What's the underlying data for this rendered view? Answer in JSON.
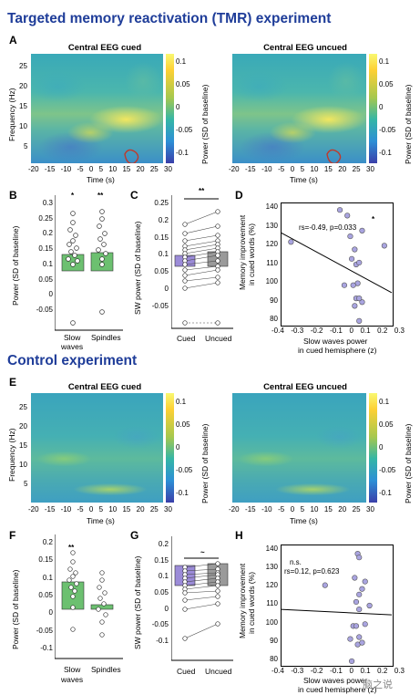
{
  "sections": {
    "tmr_title": "Targeted memory reactivation (TMR)  experiment",
    "control_title": "Control experiment"
  },
  "panels": {
    "A": "A",
    "B": "B",
    "C": "C",
    "D": "D",
    "E": "E",
    "F": "F",
    "G": "G",
    "H": "H"
  },
  "spectrogram": {
    "cued_title": "Central EEG cued",
    "uncued_title": "Central EEG uncued",
    "ylabel": "Frequency (Hz)",
    "xlabel": "Time (s)",
    "yticks": [
      "25",
      "20",
      "15",
      "10",
      "5"
    ],
    "xticks": [
      "-20",
      "-15",
      "-10",
      "-5",
      "0",
      "5",
      "10",
      "15",
      "20",
      "25",
      "30"
    ],
    "cbar_label": "Power (SD of baseline)",
    "cbar_ticks_cued_A": [
      "0.1",
      "0.05",
      "0",
      "-0.05",
      "-0.1"
    ],
    "cbar_ticks_uncued_A": [
      "0.1",
      "0.05",
      "0",
      "-0.05",
      "-0.1"
    ],
    "cbar_ticks_cued_E": [
      "0.1",
      "0.05",
      "0",
      "-0.05",
      "-0.1"
    ],
    "cbar_ticks_uncued_E": [
      "0.1",
      "0.05",
      "0",
      "-0.05",
      "-0.1"
    ]
  },
  "panelB": {
    "ylabel": "Power (SD of baseline)",
    "yticks": [
      "0.3",
      "0.25",
      "0.2",
      "0.15",
      "0.1",
      "0.05",
      "0",
      "-0.05"
    ],
    "categories": [
      "Slow\nwaves",
      "Spindles"
    ],
    "cat1": "Slow",
    "cat1b": "waves",
    "cat2": "Spindles",
    "sig": [
      "*",
      "**"
    ]
  },
  "panelC": {
    "ylabel": "SW power (SD of baseline)",
    "yticks": [
      "0.25",
      "0.2",
      "0.15",
      "0.1",
      "0.05",
      "0",
      "-0.05"
    ],
    "categories": [
      "Cued",
      "Uncued"
    ],
    "sig": "**"
  },
  "panelD": {
    "ylabel1": "Memory improvement",
    "ylabel2": "in cued words (%)",
    "xlabel1": "Slow waves power",
    "xlabel2": "in cued hemisphere (z)",
    "stat": "rs=-0.49, p=0.033",
    "sig": "*",
    "yticks": [
      "140",
      "130",
      "120",
      "110",
      "100",
      "90",
      "80"
    ],
    "xticks": [
      "-0.4",
      "-0.3",
      "-0.2",
      "-0.1",
      "0",
      "0.1",
      "0.2",
      "0.3"
    ]
  },
  "panelF": {
    "ylabel": "Power (SD of baseline)",
    "yticks": [
      "0.2",
      "0.15",
      "0.1",
      "0.05",
      "0",
      "-0.05",
      "-0.1"
    ],
    "cat1": "Slow",
    "cat1b": "waves",
    "cat2": "Spindles",
    "sig": "**"
  },
  "panelG": {
    "ylabel": "SW power (SD of baseline)",
    "yticks": [
      "0.2",
      "0.15",
      "0.1",
      "0.05",
      "0",
      "-0.05",
      "-0.1"
    ],
    "categories": [
      "Cued",
      "Uncued"
    ],
    "sig": "~"
  },
  "panelH": {
    "ylabel1": "Memory improvement",
    "ylabel2": "in cued words (%)",
    "xlabel1": "Slow waves power",
    "xlabel2": "in cued hemisphere (z)",
    "stat": "rs=0.12, p=0.623",
    "sig": "n.s.",
    "yticks": [
      "140",
      "130",
      "120",
      "110",
      "100",
      "90",
      "80"
    ],
    "xticks": [
      "-0.4",
      "-0.3",
      "-0.2",
      "-0.1",
      "0",
      "0.1",
      "0.2",
      "0.3"
    ]
  },
  "watermark": "脑之说",
  "colors": {
    "title": "#1f3d99",
    "bar_green": "#6cc070",
    "bar_purple": "#9b8bd8",
    "bar_gray": "#9a9a9a",
    "scatter": "#a9a4e0"
  },
  "chart_data": [
    {
      "panel": "D",
      "type": "scatter",
      "xlabel": "Slow waves power in cued hemisphere (z)",
      "ylabel": "Memory improvement in cued words (%)",
      "xlim": [
        -0.45,
        0.3
      ],
      "ylim": [
        78,
        142
      ],
      "x": [
        -0.38,
        -0.05,
        0.0,
        0.02,
        0.05,
        0.03,
        0.06,
        0.08,
        0.1,
        0.07,
        -0.02,
        0.04,
        0.06,
        0.1,
        0.08,
        0.25,
        0.05,
        0.08
      ],
      "y": [
        122,
        139,
        136,
        125,
        118,
        113,
        110,
        111,
        128,
        100,
        99,
        99,
        92,
        90,
        92,
        120,
        88,
        80
      ],
      "fit": {
        "x": [
          -0.45,
          0.3
        ],
        "y": [
          127,
          95
        ]
      }
    },
    {
      "panel": "H",
      "type": "scatter",
      "xlabel": "Slow waves power in cued hemisphere (z)",
      "ylabel": "Memory improvement in cued words (%)",
      "xlim": [
        -0.45,
        0.3
      ],
      "ylim": [
        78,
        142
      ],
      "x": [
        -0.15,
        0.07,
        0.08,
        0.05,
        0.1,
        0.08,
        0.06,
        0.15,
        0.12,
        0.04,
        0.06,
        0.08,
        0.02,
        0.07,
        0.1,
        0.03,
        0.12,
        0.08
      ],
      "y": [
        121,
        138,
        136,
        125,
        119,
        116,
        112,
        110,
        100,
        99,
        99,
        93,
        92,
        89,
        90,
        80,
        123,
        108
      ],
      "fit": {
        "x": [
          -0.45,
          0.3
        ],
        "y": [
          108,
          105
        ]
      }
    }
  ]
}
